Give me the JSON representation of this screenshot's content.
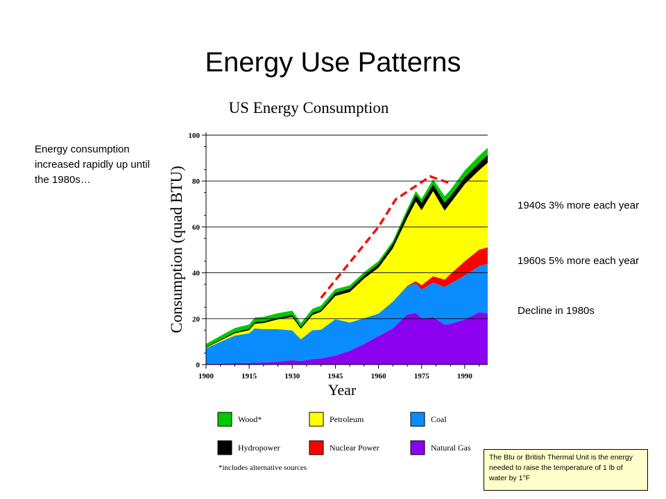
{
  "slide": {
    "title": "Energy Use Patterns",
    "note_left": "Energy consumption increased rapidly up until the 1980s…",
    "note_1940s": "1940s 3% more each year",
    "note_1960s": "1960s 5% more each year",
    "note_1980s": "Decline in 1980s",
    "btu_note": "The Btu or British Thermal  Unit is the energy needed to raise the temperature of 1 lb of water by 1°F"
  },
  "colors": {
    "wood": "#00c800",
    "petroleum": "#ffff00",
    "coal": "#0a8cff",
    "hydropower": "#000000",
    "nuclear": "#ff0000",
    "natural_gas": "#8c00f0",
    "trend": "#ee1111"
  },
  "chart_data": {
    "type": "area",
    "title": "US Energy Consumption",
    "xlabel": "Year",
    "ylabel": "Consumption (quad BTU)",
    "xlim": [
      1900,
      1998
    ],
    "ylim": [
      0,
      100
    ],
    "x_ticks": [
      1900,
      1915,
      1930,
      1945,
      1960,
      1975,
      1990
    ],
    "y_ticks": [
      0,
      20,
      40,
      60,
      80,
      100
    ],
    "grid": "horizontal",
    "stacked": true,
    "x": [
      1900,
      1905,
      1910,
      1915,
      1917,
      1920,
      1925,
      1930,
      1933,
      1937,
      1940,
      1945,
      1950,
      1955,
      1960,
      1965,
      1970,
      1973,
      1975,
      1979,
      1983,
      1985,
      1990,
      1995,
      1998
    ],
    "series": [
      {
        "name": "Natural Gas",
        "color_key": "natural_gas",
        "values": [
          0.3,
          0.4,
          0.6,
          0.7,
          0.8,
          0.9,
          1.2,
          1.9,
          1.5,
          2.4,
          2.7,
          3.9,
          6.0,
          9.0,
          12.4,
          15.8,
          21.8,
          22.5,
          20.0,
          20.7,
          17.4,
          17.8,
          19.6,
          22.8,
          22.3
        ]
      },
      {
        "name": "Coal",
        "color_key": "coal",
        "values": [
          6.8,
          9.5,
          12.0,
          12.9,
          15.0,
          14.5,
          14.2,
          13.0,
          9.5,
          12.6,
          12.5,
          15.9,
          12.3,
          11.2,
          9.8,
          11.6,
          12.3,
          12.9,
          12.7,
          15.0,
          16.4,
          17.5,
          19.2,
          20.1,
          21.6
        ]
      },
      {
        "name": "Nuclear Power",
        "color_key": "nuclear",
        "values": [
          0,
          0,
          0,
          0,
          0,
          0,
          0,
          0,
          0,
          0,
          0,
          0,
          0,
          0,
          0,
          0.05,
          0.2,
          0.9,
          1.9,
          2.8,
          3.2,
          4.1,
          6.2,
          7.2,
          7.2
        ]
      },
      {
        "name": "Petroleum",
        "color_key": "petroleum",
        "values": [
          0.2,
          0.6,
          1.0,
          1.4,
          2.0,
          2.7,
          4.3,
          5.9,
          4.6,
          6.6,
          7.8,
          10.1,
          13.3,
          17.3,
          20.0,
          23.2,
          29.5,
          34.8,
          32.7,
          37.1,
          30.1,
          30.9,
          33.6,
          34.6,
          36.9
        ]
      },
      {
        "name": "Hydropower",
        "color_key": "hydropower",
        "values": [
          0.3,
          0.4,
          0.5,
          0.6,
          0.7,
          0.7,
          0.7,
          0.8,
          0.7,
          0.9,
          0.9,
          1.4,
          1.4,
          1.4,
          1.6,
          2.0,
          2.6,
          2.9,
          3.2,
          2.9,
          3.5,
          3.0,
          3.0,
          3.2,
          3.3
        ]
      },
      {
        "name": "Wood*",
        "color_key": "wood",
        "values": [
          1.4,
          1.6,
          1.8,
          1.9,
          2.0,
          2.0,
          2.0,
          1.9,
          1.8,
          1.8,
          1.8,
          1.6,
          1.5,
          1.4,
          1.3,
          1.2,
          1.4,
          1.6,
          1.7,
          2.3,
          2.8,
          2.8,
          3.0,
          3.2,
          3.2
        ]
      }
    ],
    "legend": [
      {
        "label": "Wood*",
        "color_key": "wood"
      },
      {
        "label": "Petroleum",
        "color_key": "petroleum"
      },
      {
        "label": "Coal",
        "color_key": "coal"
      },
      {
        "label": "Hydropower",
        "color_key": "hydropower"
      },
      {
        "label": "Nuclear Power",
        "color_key": "nuclear"
      },
      {
        "label": "Natural Gas",
        "color_key": "natural_gas"
      }
    ],
    "legend_placement": "bottom",
    "footnote": "*includes alternative sources",
    "trend_line": {
      "style": "dashed",
      "points": [
        [
          1940,
          29
        ],
        [
          1960,
          60
        ],
        [
          1966,
          72
        ],
        [
          1978,
          82
        ],
        [
          1985,
          79
        ]
      ]
    }
  }
}
